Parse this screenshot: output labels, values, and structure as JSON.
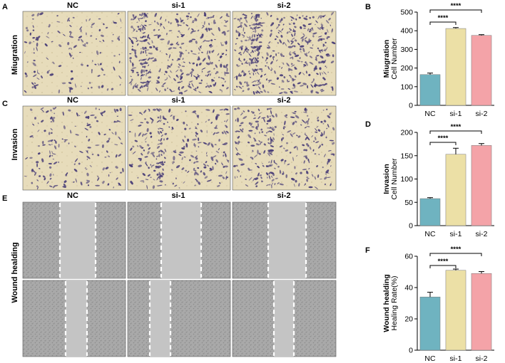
{
  "panel_letters": [
    "A",
    "B",
    "C",
    "D",
    "E",
    "F"
  ],
  "row_labels": {
    "migration": "Miugration",
    "invasion": "Invasion",
    "wound": "Wound healding"
  },
  "column_headers": [
    "NC",
    "si-1",
    "si-2"
  ],
  "colors": {
    "NC": "#6fb3c0",
    "si-1": "#ece0a6",
    "si-2": "#f4a3a8",
    "stain": "#4a3f78",
    "tan": "#e6dbb8",
    "gray_bg": "#b5b5b5"
  },
  "chart_data": [
    {
      "panel": "B",
      "type": "bar",
      "categories": [
        "NC",
        "si-1",
        "si-2"
      ],
      "values": [
        165,
        412,
        375
      ],
      "errors": [
        8,
        5,
        4
      ],
      "ylabel_group": "Miugration",
      "ylabel": "Cell Number",
      "xlabel": "",
      "ylim": [
        0,
        500
      ],
      "yticks": [
        0,
        100,
        200,
        300,
        400,
        500
      ],
      "significance": [
        {
          "from": "NC",
          "to": "si-1",
          "label": "****"
        },
        {
          "from": "NC",
          "to": "si-2",
          "label": "****"
        }
      ]
    },
    {
      "panel": "D",
      "type": "bar",
      "categories": [
        "NC",
        "si-1",
        "si-2"
      ],
      "values": [
        58,
        153,
        172
      ],
      "errors": [
        2,
        13,
        4
      ],
      "ylabel_group": "Invasion",
      "ylabel": "Cell Number",
      "xlabel": "",
      "ylim": [
        0,
        200
      ],
      "yticks": [
        0,
        50,
        100,
        150,
        200
      ],
      "significance": [
        {
          "from": "NC",
          "to": "si-1",
          "label": "****"
        },
        {
          "from": "NC",
          "to": "si-2",
          "label": "****"
        }
      ]
    },
    {
      "panel": "F",
      "type": "bar",
      "categories": [
        "NC",
        "si-1",
        "si-2"
      ],
      "values": [
        34,
        51,
        49
      ],
      "errors": [
        3,
        0.8,
        1.2
      ],
      "ylabel_group": "Wound healding",
      "ylabel": "Healing Rate(%)",
      "xlabel": "",
      "ylim": [
        0,
        60
      ],
      "yticks": [
        0,
        20,
        40,
        60
      ],
      "significance": [
        {
          "from": "NC",
          "to": "si-1",
          "label": "****"
        },
        {
          "from": "NC",
          "to": "si-2",
          "label": "****"
        }
      ]
    }
  ]
}
